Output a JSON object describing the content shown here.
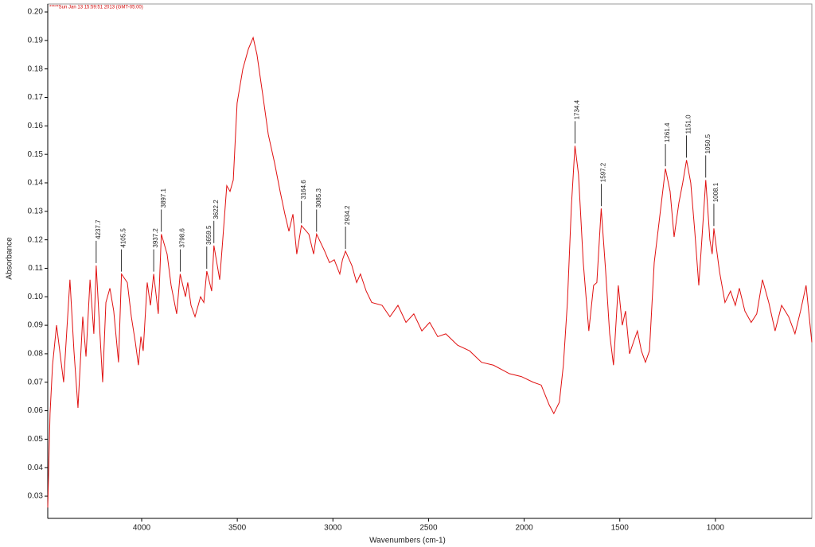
{
  "chart_data": {
    "type": "line",
    "title": "*****Sun Jan 13 15:59:51 2013 (GMT-05:00)",
    "xlabel": "Wavenumbers (cm-1)",
    "ylabel": "Absorbance",
    "color": "#e01010",
    "xlim": [
      4491,
      496
    ],
    "ylim": [
      0.0222,
      0.2028
    ],
    "xticks": [
      4000,
      3500,
      3000,
      2500,
      2000,
      1500,
      1000
    ],
    "yticks": [
      {
        "value": 0.2,
        "label": "0.20"
      },
      0.19,
      0.18,
      0.17,
      0.16,
      0.15,
      0.14,
      0.13,
      0.12,
      0.11,
      {
        "value": 0.1,
        "label": "0.10"
      },
      0.09,
      0.08,
      0.07,
      0.06,
      0.05,
      0.04,
      0.03
    ],
    "x": [
      4491,
      4479,
      4466,
      4445,
      4408,
      4375,
      4354,
      4333,
      4308,
      4291,
      4270,
      4250,
      4237.7,
      4204,
      4187,
      4166,
      4146,
      4121,
      4105.5,
      4075,
      4054,
      4033,
      4017,
      4004,
      3992,
      3971,
      3954,
      3937.2,
      3913,
      3897.1,
      3867,
      3846,
      3817,
      3798.6,
      3771,
      3759,
      3742,
      3721,
      3692,
      3675,
      3659.5,
      3634,
      3622.2,
      3592,
      3576,
      3555,
      3538,
      3521,
      3501,
      3471,
      3442,
      3417,
      3397,
      3367,
      3338,
      3305,
      3276,
      3251,
      3230,
      3209,
      3189,
      3164.6,
      3126,
      3101,
      3085.3,
      3043,
      3018,
      2993,
      2964,
      2950,
      2934.2,
      2901,
      2876,
      2856,
      2826,
      2797,
      2743,
      2702,
      2660,
      2618,
      2577,
      2535,
      2494,
      2452,
      2410,
      2348,
      2285,
      2223,
      2161,
      2077,
      2015,
      1953,
      1911,
      1869,
      1845,
      1816,
      1795,
      1774,
      1753,
      1734.4,
      1716,
      1691,
      1662,
      1637,
      1620,
      1597.2,
      1574,
      1553,
      1533,
      1508,
      1487,
      1470,
      1449,
      1429,
      1408,
      1387,
      1366,
      1345,
      1320,
      1295,
      1261.4,
      1237,
      1216,
      1191,
      1171,
      1151.0,
      1129,
      1108,
      1087,
      1071,
      1050.5,
      1029,
      1017,
      1008.1,
      979,
      950,
      921,
      896,
      875,
      846,
      813,
      784,
      754,
      721,
      688,
      654,
      617,
      584,
      555,
      526,
      496
    ],
    "values": [
      0.026,
      0.059,
      0.076,
      0.09,
      0.07,
      0.106,
      0.081,
      0.061,
      0.093,
      0.079,
      0.106,
      0.087,
      0.111,
      0.07,
      0.098,
      0.103,
      0.095,
      0.077,
      0.108,
      0.105,
      0.093,
      0.084,
      0.076,
      0.086,
      0.081,
      0.105,
      0.097,
      0.108,
      0.094,
      0.122,
      0.115,
      0.104,
      0.094,
      0.108,
      0.1,
      0.105,
      0.097,
      0.093,
      0.1,
      0.098,
      0.109,
      0.102,
      0.118,
      0.106,
      0.12,
      0.139,
      0.137,
      0.141,
      0.168,
      0.18,
      0.187,
      0.191,
      0.185,
      0.171,
      0.157,
      0.147,
      0.137,
      0.129,
      0.123,
      0.129,
      0.115,
      0.125,
      0.122,
      0.115,
      0.122,
      0.116,
      0.112,
      0.113,
      0.108,
      0.113,
      0.116,
      0.111,
      0.105,
      0.108,
      0.102,
      0.098,
      0.097,
      0.093,
      0.097,
      0.091,
      0.094,
      0.088,
      0.091,
      0.086,
      0.087,
      0.083,
      0.081,
      0.077,
      0.076,
      0.073,
      0.072,
      0.07,
      0.069,
      0.062,
      0.059,
      0.063,
      0.076,
      0.098,
      0.132,
      0.153,
      0.143,
      0.112,
      0.088,
      0.104,
      0.105,
      0.131,
      0.109,
      0.087,
      0.076,
      0.104,
      0.09,
      0.095,
      0.08,
      0.084,
      0.088,
      0.081,
      0.077,
      0.081,
      0.112,
      0.126,
      0.145,
      0.137,
      0.121,
      0.133,
      0.14,
      0.148,
      0.14,
      0.123,
      0.104,
      0.12,
      0.141,
      0.12,
      0.115,
      0.124,
      0.109,
      0.098,
      0.102,
      0.097,
      0.103,
      0.095,
      0.091,
      0.094,
      0.106,
      0.098,
      0.088,
      0.097,
      0.093,
      0.087,
      0.095,
      0.104,
      0.084
    ],
    "annotations": [
      {
        "x": 4237.7,
        "y": 0.111,
        "label": "4237.7"
      },
      {
        "x": 4105.5,
        "y": 0.108,
        "label": "4105.5"
      },
      {
        "x": 3937.2,
        "y": 0.108,
        "label": "3937.2"
      },
      {
        "x": 3897.1,
        "y": 0.122,
        "label": "3897.1"
      },
      {
        "x": 3798.6,
        "y": 0.108,
        "label": "3798.6"
      },
      {
        "x": 3659.5,
        "y": 0.109,
        "label": "3659.5"
      },
      {
        "x": 3622.2,
        "y": 0.118,
        "label": "3622.2"
      },
      {
        "x": 3164.6,
        "y": 0.125,
        "label": "3164.6"
      },
      {
        "x": 3085.3,
        "y": 0.122,
        "label": "3085.3"
      },
      {
        "x": 2934.2,
        "y": 0.116,
        "label": "2934.2"
      },
      {
        "x": 1734.4,
        "y": 0.153,
        "label": "1734.4"
      },
      {
        "x": 1597.2,
        "y": 0.131,
        "label": "1597.2"
      },
      {
        "x": 1261.4,
        "y": 0.145,
        "label": "1261.4"
      },
      {
        "x": 1151.0,
        "y": 0.148,
        "label": "1151.0"
      },
      {
        "x": 1050.5,
        "y": 0.141,
        "label": "1050.5"
      },
      {
        "x": 1008.1,
        "y": 0.124,
        "label": "1008.1"
      }
    ]
  }
}
